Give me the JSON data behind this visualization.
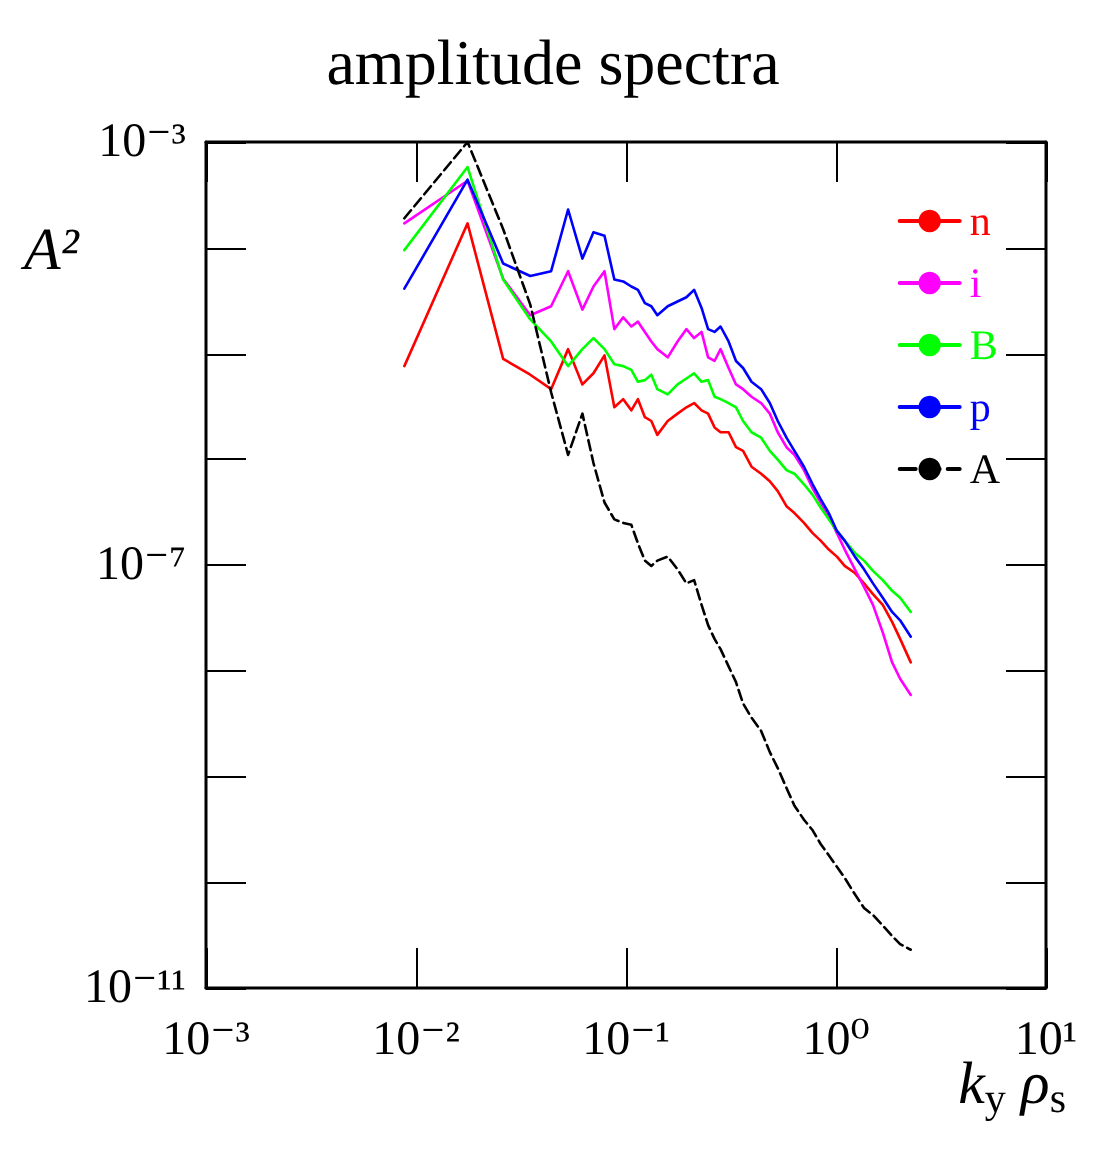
{
  "chart_data": {
    "type": "line",
    "title": "amplitude spectra",
    "xlabel": "k$_{y}$ ρ$_{s}$",
    "ylabel": "A²",
    "log": "xy",
    "grid": false,
    "legend": "top right",
    "marker": "none",
    "x": [
      0.0088,
      0.0176,
      0.026,
      0.035,
      0.044,
      0.053,
      0.062,
      0.07,
      0.079,
      0.088,
      0.097,
      0.106,
      0.114,
      0.123,
      0.132,
      0.141,
      0.158,
      0.176,
      0.194,
      0.211,
      0.229,
      0.246,
      0.264,
      0.282,
      0.308,
      0.334,
      0.361,
      0.396,
      0.44,
      0.484,
      0.528,
      0.581,
      0.634,
      0.704,
      0.774,
      0.845,
      0.924,
      1.01,
      1.1,
      1.23,
      1.36,
      1.5,
      1.67,
      1.85,
      2.02,
      2.27
    ],
    "xlim": [
      0.001,
      10
    ],
    "xticks": [
      {
        "value": 0.001,
        "label": "10⁻³"
      },
      {
        "value": 0.01,
        "label": "10⁻²"
      },
      {
        "value": 0.1,
        "label": "10⁻¹"
      },
      {
        "value": 1,
        "label": "10⁰"
      },
      {
        "value": 10,
        "label": "10¹"
      }
    ],
    "ylim": [
      1e-11,
      0.001
    ],
    "yticks": [
      {
        "value": 1e-11,
        "label": "10⁻¹¹"
      },
      {
        "value": 1e-07,
        "label": "10⁻⁷"
      },
      {
        "value": 0.001,
        "label": "10⁻³"
      }
    ],
    "series": [
      {
        "name": "n",
        "color": "#ff0000",
        "line_style": "solid",
        "values": [
          7.6e-06,
          0.00017,
          8.9e-06,
          6.3e-06,
          4.6e-06,
          1.1e-05,
          5.1e-06,
          6.5e-06,
          9.6e-06,
          3.1e-06,
          3.7e-06,
          2.9e-06,
          3.7e-06,
          2.5e-06,
          2.3e-06,
          1.7e-06,
          2.3e-06,
          2.7e-06,
          3.1e-06,
          3.4e-06,
          2.9e-06,
          2.7e-06,
          2e-06,
          1.8e-06,
          1.8e-06,
          1.3e-06,
          1.2e-06,
          8.5e-07,
          7.3e-07,
          6.2e-07,
          5e-07,
          3.6e-07,
          3.1e-07,
          2.5e-07,
          2e-07,
          1.7e-07,
          1.4e-07,
          1.2e-07,
          9.8e-08,
          8.4e-08,
          6.7e-08,
          5.3e-08,
          4.2e-08,
          2.9e-08,
          2e-08,
          1.2e-08
        ]
      },
      {
        "name": "i",
        "color": "#ff00ff",
        "line_style": "solid",
        "values": [
          0.00017,
          0.00043,
          5.1e-05,
          2.3e-05,
          2.8e-05,
          6e-05,
          2.6e-05,
          4.3e-05,
          6e-05,
          1.7e-05,
          2.2e-05,
          1.8e-05,
          2e-05,
          1.6e-05,
          1.3e-05,
          1.1e-05,
          9.2e-06,
          1.3e-05,
          1.7e-05,
          1.4e-05,
          1.6e-05,
          9.2e-06,
          8.5e-06,
          1.1e-05,
          7.3e-06,
          5.1e-06,
          4.6e-06,
          3.9e-06,
          3.4e-06,
          2.7e-06,
          1.8e-06,
          1.3e-06,
          1.1e-06,
          7.9e-07,
          5.3e-07,
          3.9e-07,
          2.9e-07,
          2e-07,
          1.4e-07,
          9.1e-08,
          6.2e-08,
          4.2e-08,
          2.3e-08,
          1.2e-08,
          8.4e-09,
          5.9e-09
        ]
      },
      {
        "name": "B",
        "color": "#00ff00",
        "line_style": "solid",
        "values": [
          9.5e-05,
          0.00058,
          5e-05,
          2.1e-05,
          1.3e-05,
          7.6e-06,
          1.1e-05,
          1.4e-05,
          1.1e-05,
          7.9e-06,
          7.6e-06,
          7e-06,
          5.4e-06,
          5.6e-06,
          6.3e-06,
          4.6e-06,
          4.1e-06,
          5.1e-06,
          5.8e-06,
          6.5e-06,
          5.4e-06,
          5.6e-06,
          3.9e-06,
          3.7e-06,
          3.4e-06,
          3.1e-06,
          2.3e-06,
          1.8e-06,
          1.6e-06,
          1.2e-06,
          9.9e-07,
          7.9e-07,
          7.3e-07,
          5.8e-07,
          4.6e-07,
          3.5e-07,
          2.7e-07,
          2.1e-07,
          1.7e-07,
          1.3e-07,
          1.1e-07,
          8.8e-08,
          7.2e-08,
          5.7e-08,
          4.9e-08,
          3.6e-08
        ]
      },
      {
        "name": "p",
        "color": "#0000ff",
        "line_style": "solid",
        "values": [
          4.1e-05,
          0.00044,
          7.1e-05,
          5.4e-05,
          6e-05,
          0.00023,
          7.9e-05,
          0.00014,
          0.00013,
          5e-05,
          4.8e-05,
          4.3e-05,
          4e-05,
          3e-05,
          2.8e-05,
          2.3e-05,
          2.8e-05,
          3.1e-05,
          3.4e-05,
          4e-05,
          2.7e-05,
          1.7e-05,
          1.6e-05,
          1.8e-05,
          1.3e-05,
          8.5e-06,
          7.3e-06,
          5.4e-06,
          4.6e-06,
          3.4e-06,
          2.3e-06,
          1.6e-06,
          1.2e-06,
          8.5e-07,
          5.8e-07,
          4.2e-07,
          3.1e-07,
          2.1e-07,
          1.7e-07,
          1.2e-07,
          9.1e-08,
          6.7e-08,
          4.9e-08,
          3.6e-08,
          3e-08,
          2.1e-08
        ]
      },
      {
        "name": "A",
        "color": "#000000",
        "line_style": "dashed",
        "values": [
          0.00019,
          0.001,
          0.00015,
          2.9e-05,
          4.3e-06,
          1.1e-06,
          2.7e-06,
          9.2e-07,
          3.9e-07,
          2.7e-07,
          2.5e-07,
          2.4e-07,
          1.6e-07,
          1.1e-07,
          9.8e-08,
          1.1e-07,
          1.2e-07,
          9.1e-08,
          6.7e-08,
          7.2e-08,
          4.2e-08,
          2.7e-08,
          2e-08,
          1.6e-08,
          1.1e-08,
          7.8e-09,
          4.9e-09,
          3.6e-09,
          2.7e-09,
          1.7e-09,
          1.2e-09,
          7.8e-10,
          5.3e-10,
          3.9e-10,
          3.1e-10,
          2.3e-10,
          1.8e-10,
          1.4e-10,
          1.1e-10,
          7.7e-11,
          5.7e-11,
          4.9e-11,
          3.9e-11,
          3.1e-11,
          2.6e-11,
          2.3e-11
        ]
      }
    ]
  }
}
